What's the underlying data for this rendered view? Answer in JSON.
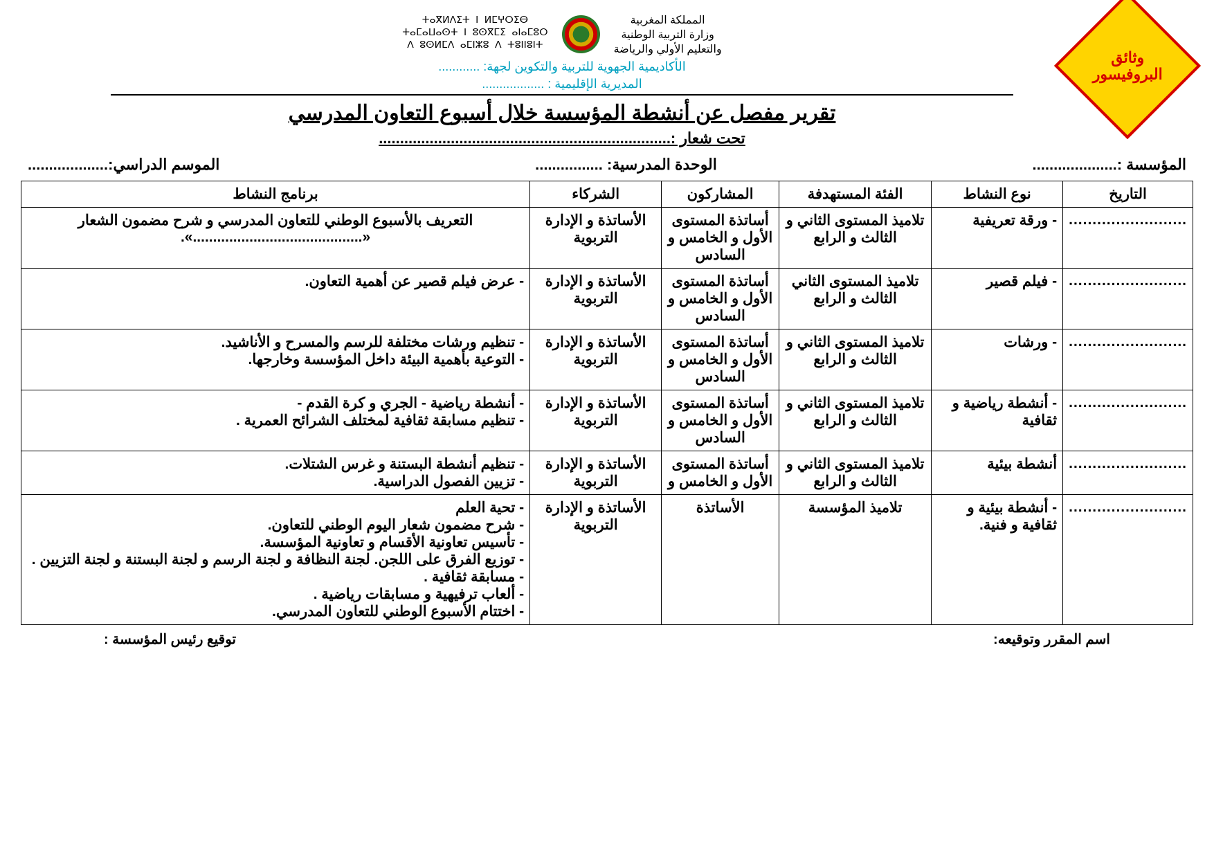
{
  "header": {
    "gov_ar_line1": "المملكة المغربية",
    "gov_ar_line2": "وزارة التربية الوطنية",
    "gov_ar_line3": "والتعليم الأولي والرياضة",
    "gov_am_line1": "ⵜⴰⴳⵍⴷⵉⵜ ⵏ ⵍⵎⵖⵔⵉⴱ",
    "gov_am_line2": "ⵜⴰⵎⴰⵡⴰⵙⵜ ⵏ ⵓⵙⴳⵎⵉ ⴰⵏⴰⵎⵓⵔ",
    "gov_am_line3": "ⴷ ⵓⵙⵍⵎⴷ ⴰⵎⵏⵣⵓ ⴷ ⵜⵓⵏⵏⵓⵏⵜ",
    "acad_line": "الأكاديمية الجهوية للتربية والتكوين لجهة: ............",
    "dir_line": "المديرية الإقليمية : ..................",
    "title": "تقرير مفصل عن أنشطة المؤسسة خلال أسبوع التعاون المدرسي",
    "subtitle": "تحت شعار :.....................................................................",
    "logo_text1": "وثائق",
    "logo_text2": "البروفيسور"
  },
  "info": {
    "institution": "المؤسسة :....................",
    "unit": "الوحدة المدرسية:  ................",
    "year": "الموسم الدراسي:..................."
  },
  "columns": {
    "date": "التاريخ",
    "type": "نوع النشاط",
    "target": "الفئة المستهدفة",
    "participants": "المشاركون",
    "partners": "الشركاء",
    "program": "برنامج النشاط"
  },
  "rows": [
    {
      "date": ".........................",
      "type": "-    ورقة تعريفية",
      "target": "تلاميذ المستوى الثاني و الثالث و الرابع",
      "participants": "أساتذة المستوى الأول و الخامس و السادس",
      "partners": "الأساتذة و الإدارة التربوية",
      "program": "التعريف بالأسبوع الوطني للتعاون المدرسي و شرح مضمون الشعار «..........................................».",
      "program_align": "center"
    },
    {
      "date": ".........................",
      "type": "-    فيلم قصير",
      "target": "تلاميذ المستوى الثاني الثالث و الرابع",
      "participants": "أساتذة المستوى الأول و الخامس و السادس",
      "partners": "الأساتذة و الإدارة التربوية",
      "program": "-    عرض فيلم قصير عن أهمية التعاون.",
      "program_align": "right"
    },
    {
      "date": ".........................",
      "type": "-   ورشات",
      "target": "تلاميذ المستوى الثاني و الثالث و الرابع",
      "participants": "أساتذة المستوى الأول و الخامس و السادس",
      "partners": "الأساتذة و الإدارة التربوية",
      "program": "- تنظيم ورشات مختلفة للرسم والمسرح و الأناشيد.\n- التوعية بأهمية البيئة داخل المؤسسة وخارجها.",
      "program_align": "right"
    },
    {
      "date": ".........................",
      "type": "- أنشطة رياضية و ثقافية",
      "target": "تلاميذ المستوى الثاني و الثالث و الرابع",
      "participants": "أساتذة المستوى الأول و الخامس و السادس",
      "partners": "الأساتذة و الإدارة التربوية",
      "program": "- أنشطة رياضية - الجري و كرة القدم -\n- تنظيم مسابقة ثقافية لمختلف الشرائح العمرية .",
      "program_align": "right"
    },
    {
      "date": ".........................",
      "type": "أنشطة بيئية",
      "target": "تلاميذ المستوى الثاني و الثالث و الرابع",
      "participants": "أساتذة المستوى الأول و الخامس و",
      "partners": "الأساتذة و الإدارة التربوية",
      "program": "- تنظيم أنشطة البستنة و غرس الشتلات.\n- تزيين الفصول الدراسية.",
      "program_align": "right"
    },
    {
      "date": ".........................",
      "type": "- أنشطة بيئية و ثقافية و فنية.",
      "target": "تلاميذ المؤسسة",
      "participants": "الأساتذة",
      "partners": "الأساتذة و الإدارة التربوية",
      "program": "- تحية العلم\n- شرح مضمون شعار اليوم الوطني للتعاون.\n- تأسيس تعاونية الأقسام و  تعاونية المؤسسة.\n- توزيع الفرق على اللجن. لجنة النظافة و لجنة الرسم و لجنة البستنة و لجنة التزيين .\n- مسابقة ثقافية .\n- ألعاب ترفيهية و مسابقات رياضية .\n- اختتام الأسبوع الوطني للتعاون المدرسي.",
      "program_align": "right"
    }
  ],
  "signatures": {
    "reporter": "اسم المقرر وتوقيعه:",
    "director": "توقيع رئيس المؤسسة :"
  }
}
